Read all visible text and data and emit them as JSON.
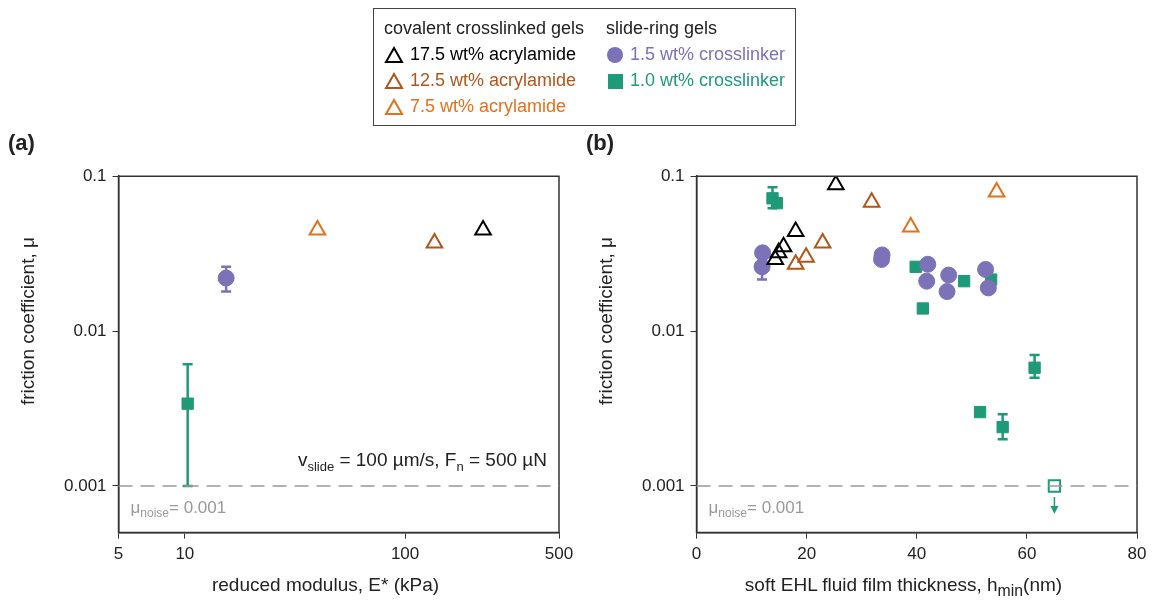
{
  "chart_data": [
    {
      "type": "scatter",
      "title": "(a)",
      "xlabel": "reduced modulus, E* (kPa)",
      "ylabel": "friction coefficient, μ",
      "legend": "top right",
      "legend_title": "covalent crosslinked gels",
      "log": "xy",
      "grid": false,
      "xlim": [
        5,
        500
      ],
      "xticks": [
        5,
        10,
        100,
        500
      ],
      "ylim": [
        0.0005,
        0.1
      ],
      "yticks": [
        0.001,
        0.01,
        0.1
      ],
      "ref_lines": [
        {
          "axis": "y",
          "value": 0.001,
          "label": "μ$_{noise}$= 0.001",
          "color": "#999999",
          "line_style": "dashed"
        }
      ],
      "annotations": [
        "v$_{slide}$ = 100 µm/s, F$_{n}$ = 500 µN"
      ],
      "series": [
        {
          "name": "17.5 wt% acrylamide",
          "color": "#000000",
          "marker": "triangle",
          "x": [
            226
          ],
          "values": [
            0.045
          ]
        },
        {
          "name": "12.5 wt% acrylamide",
          "color": "#b0561a",
          "marker": "triangle",
          "x": [
            136
          ],
          "values": [
            0.037
          ]
        },
        {
          "name": "7.5 wt% acrylamide",
          "color": "#e2711d",
          "marker": "triangle",
          "x": [
            40
          ],
          "values": [
            0.045
          ]
        },
        {
          "color": "#7b72b8",
          "marker": "circle",
          "x": [
            15.4
          ],
          "values": [
            0.022
          ],
          "errors": [
            [
              0.018,
              0.026
            ]
          ]
        },
        {
          "color": "#1e9a78",
          "marker": "square",
          "x": [
            10.3
          ],
          "values": [
            0.0034
          ],
          "errors": [
            [
              0.001,
              0.0061
            ]
          ]
        }
      ]
    },
    {
      "type": "scatter",
      "title": "(b)",
      "xlabel": "soft EHL fluid film thickness, h$_{min}$(nm)",
      "ylabel": "friction coefficient, μ",
      "legend": "top left",
      "legend_title": "slide-ring gels",
      "log": "y",
      "grid": false,
      "xlim": [
        0,
        80
      ],
      "xticks": [
        0,
        20,
        40,
        60,
        80
      ],
      "ylim": [
        0.0005,
        0.1
      ],
      "yticks": [
        0.001,
        0.01,
        0.1
      ],
      "ref_lines": [
        {
          "axis": "y",
          "value": 0.001,
          "label": "μ$_{noise}$= 0.001",
          "color": "#999999",
          "line_style": "dashed"
        }
      ],
      "series": [
        {
          "color": "#000000",
          "marker": "triangle",
          "x": [
            14.3,
            14.9,
            15.8,
            18,
            25.3
          ],
          "values": [
            0.029,
            0.032,
            0.035,
            0.044,
            0.088
          ]
        },
        {
          "color": "#b0561a",
          "marker": "triangle",
          "x": [
            18,
            19.9,
            22.9,
            31.8
          ],
          "values": [
            0.027,
            0.03,
            0.037,
            0.068
          ]
        },
        {
          "color": "#e2711d",
          "marker": "triangle",
          "x": [
            38.9,
            54.5
          ],
          "values": [
            0.047,
            0.079
          ]
        },
        {
          "name": "1.5 wt% crosslinker",
          "color": "#7b72b8",
          "marker": "circle",
          "x": [
            12,
            11.9,
            33.7,
            33.6,
            42,
            41.8,
            45.8,
            45.5,
            52.5,
            53
          ],
          "values": [
            0.032,
            0.026,
            0.031,
            0.029,
            0.027,
            0.021,
            0.023,
            0.018,
            0.025,
            0.019
          ],
          "errors": [
            null,
            [
              0.0215,
              0.026
            ],
            null,
            null,
            null,
            null,
            null,
            null,
            null,
            null
          ]
        },
        {
          "name": "1.0 wt% crosslinker",
          "color": "#1e9a78",
          "marker": "square",
          "x": [
            13.8,
            14.6,
            39.8,
            41.1,
            48.6,
            53.5,
            61.4,
            51.5,
            55.6
          ],
          "values": [
            0.072,
            0.067,
            0.026,
            0.014,
            0.021,
            0.0215,
            0.0058,
            0.003,
            0.0024
          ],
          "errors": [
            [
              0.062,
              0.085
            ],
            null,
            null,
            null,
            null,
            null,
            [
              0.005,
              0.007
            ],
            null,
            [
              0.002,
              0.0029
            ]
          ]
        },
        {
          "color": "#1e9a78",
          "marker": "square",
          "line_style": "dashed",
          "x": [
            65
          ],
          "values": [
            0.001
          ]
        }
      ]
    }
  ]
}
